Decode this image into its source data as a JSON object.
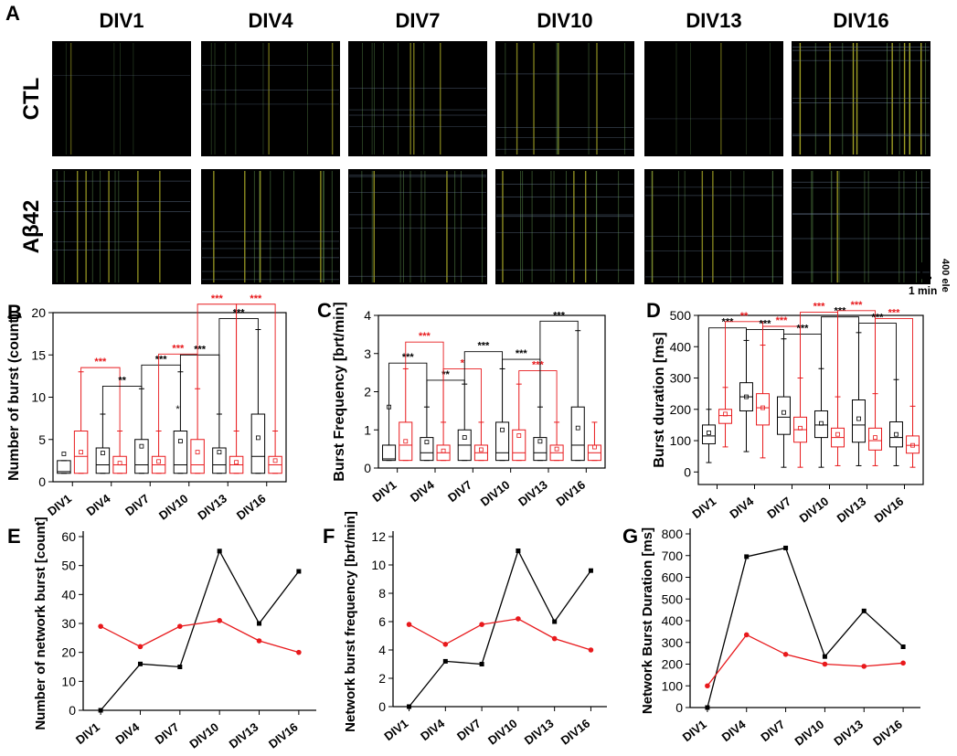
{
  "panel_letters": [
    "A",
    "B",
    "C",
    "D",
    "E",
    "F",
    "G"
  ],
  "raster": {
    "columns": [
      "DIV1",
      "DIV4",
      "DIV7",
      "DIV10",
      "DIV13",
      "DIV16"
    ],
    "rows": [
      "CTL",
      "Aβ42"
    ],
    "scale_vertical": "400 ele",
    "scale_horizontal": "1 min"
  },
  "colors": {
    "ctl": "#000000",
    "abeta": "#e8191c",
    "raster_bg": "#000000"
  },
  "chart_data": [
    {
      "id": "B",
      "type": "box",
      "categories": [
        "DIV1",
        "DIV4",
        "DIV7",
        "DIV10",
        "DIV13",
        "DIV16"
      ],
      "ylabel": "Number of burst (count)",
      "ylim": [
        0,
        20
      ],
      "yticks": [
        0,
        5,
        10,
        15,
        20
      ],
      "series": [
        {
          "name": "CTL",
          "boxes": [
            [
              1,
              1,
              1.2,
              2.5,
              2.5
            ],
            [
              1,
              1,
              2,
              4,
              8
            ],
            [
              1,
              1,
              2,
              5,
              11
            ],
            [
              1,
              1,
              2,
              6,
              13
            ],
            [
              1,
              1,
              2,
              4,
              8
            ],
            [
              1,
              1,
              3,
              8,
              18
            ]
          ],
          "means": [
            3.3,
            3.4,
            4.2,
            4.8,
            3.5,
            5.2
          ]
        },
        {
          "name": "Aβ42",
          "boxes": [
            [
              1,
              1,
              3,
              6,
              13
            ],
            [
              1,
              1,
              2,
              3,
              6
            ],
            [
              1,
              1,
              2,
              3,
              6
            ],
            [
              1,
              1,
              2,
              5,
              11
            ],
            [
              1,
              1,
              2,
              3,
              6
            ],
            [
              1,
              1,
              2,
              3,
              6
            ]
          ],
          "means": [
            3.5,
            2.2,
            2.4,
            3.5,
            2.3,
            2.5
          ]
        }
      ],
      "star_marks": [
        {
          "label": "*",
          "category": "DIV10",
          "value": 8.2,
          "color": "ctl"
        }
      ],
      "brackets": [
        {
          "from": "DIV1",
          "to": "DIV4",
          "series": "Aβ42",
          "label": "***",
          "color": "abeta",
          "level": 13.5
        },
        {
          "from": "DIV4",
          "to": "DIV7",
          "series": "CTL",
          "label": "**",
          "color": "ctl",
          "level": 11.3
        },
        {
          "from": "DIV7",
          "to": "DIV10",
          "series": "CTL",
          "label": "***",
          "color": "ctl",
          "level": 13.8
        },
        {
          "from": "DIV7",
          "to": "DIV10",
          "series": "Aβ42",
          "label": "***",
          "color": "abeta",
          "level": 15.1
        },
        {
          "from": "DIV10",
          "to": "DIV13",
          "series": "CTL",
          "label": "***",
          "color": "ctl",
          "level": 15
        },
        {
          "from": "DIV13",
          "to": "DIV16",
          "series": "CTL",
          "label": "***",
          "color": "ctl",
          "level": 19.3
        },
        {
          "from": "DIV10",
          "to": "DIV13",
          "series": "Aβ42",
          "label": "***",
          "color": "abeta",
          "level": 21
        },
        {
          "from": "DIV13",
          "to": "DIV16",
          "series": "Aβ42",
          "label": "***",
          "color": "abeta",
          "level": 21
        }
      ]
    },
    {
      "id": "C",
      "type": "box",
      "categories": [
        "DIV1",
        "DIV4",
        "DIV7",
        "DIV10",
        "DIV13",
        "DIV16"
      ],
      "ylabel": "Burst Frequency [brt/min]",
      "ylim": [
        0,
        4
      ],
      "yticks": [
        0,
        1,
        2,
        3,
        4
      ],
      "series": [
        {
          "name": "CTL",
          "boxes": [
            [
              0.2,
              0.2,
              0.24,
              0.6,
              0.6
            ],
            [
              0.2,
              0.2,
              0.4,
              0.8,
              1.6
            ],
            [
              0.2,
              0.2,
              0.6,
              1,
              2.2
            ],
            [
              0.2,
              0.2,
              0.4,
              1.2,
              2.6
            ],
            [
              0.2,
              0.2,
              0.4,
              0.8,
              1.6
            ],
            [
              0.2,
              0.2,
              0.6,
              1.6,
              3.6
            ]
          ],
          "means": [
            1.6,
            0.68,
            0.8,
            1.0,
            0.7,
            1.05
          ]
        },
        {
          "name": "Aβ42",
          "boxes": [
            [
              0.2,
              0.2,
              0.6,
              1.2,
              2.6
            ],
            [
              0.2,
              0.2,
              0.4,
              0.6,
              1.2
            ],
            [
              0.2,
              0.2,
              0.4,
              0.6,
              1.2
            ],
            [
              0.2,
              0.2,
              0.4,
              1,
              2.2
            ],
            [
              0.2,
              0.2,
              0.4,
              0.6,
              1.2
            ],
            [
              0.2,
              0.2,
              0.4,
              0.6,
              1.2
            ]
          ],
          "means": [
            0.7,
            0.45,
            0.48,
            0.85,
            0.5,
            0.55
          ]
        }
      ],
      "star_marks": [],
      "brackets": [
        {
          "from": "DIV1",
          "to": "DIV4",
          "series": "CTL",
          "label": "***",
          "color": "ctl",
          "level": 2.75
        },
        {
          "from": "DIV1",
          "to": "DIV4",
          "series": "Aβ42",
          "label": "***",
          "color": "abeta",
          "level": 3.3
        },
        {
          "from": "DIV4",
          "to": "DIV7",
          "series": "CTL",
          "label": "**",
          "color": "ctl",
          "level": 2.3
        },
        {
          "from": "DIV4",
          "to": "DIV7",
          "series": "Aβ42",
          "label": "*",
          "color": "abeta",
          "level": 2.6
        },
        {
          "from": "DIV7",
          "to": "DIV10",
          "series": "CTL",
          "label": "***",
          "color": "ctl",
          "level": 3.05
        },
        {
          "from": "DIV10",
          "to": "DIV13",
          "series": "CTL",
          "label": "***",
          "color": "ctl",
          "level": 2.85
        },
        {
          "from": "DIV10",
          "to": "DIV13",
          "series": "Aβ42",
          "label": "***",
          "color": "abeta",
          "level": 2.55
        },
        {
          "from": "DIV13",
          "to": "DIV16",
          "series": "CTL",
          "label": "***",
          "color": "ctl",
          "level": 3.85
        }
      ]
    },
    {
      "id": "D",
      "type": "box",
      "categories": [
        "DIV1",
        "DIV4",
        "DIV7",
        "DIV10",
        "DIV13",
        "DIV16"
      ],
      "ylabel": "Burst duration [ms]",
      "ylim": [
        -40,
        500
      ],
      "yticks": [
        0,
        100,
        200,
        300,
        400,
        500
      ],
      "series": [
        {
          "name": "CTL",
          "boxes": [
            [
              30,
              90,
              115,
              150,
              200
            ],
            [
              65,
              195,
              240,
              285,
              420
            ],
            [
              15,
              120,
              175,
              240,
              425
            ],
            [
              15,
              110,
              150,
              195,
              330
            ],
            [
              20,
              95,
              150,
              230,
              445
            ],
            [
              20,
              80,
              110,
              160,
              295
            ]
          ],
          "means": [
            125,
            240,
            190,
            155,
            170,
            120
          ]
        },
        {
          "name": "Aβ42",
          "boxes": [
            [
              80,
              155,
              180,
              200,
              270
            ],
            [
              45,
              150,
              205,
              250,
              405
            ],
            [
              15,
              95,
              135,
              175,
              300
            ],
            [
              20,
              80,
              110,
              140,
              240
            ],
            [
              20,
              70,
              100,
              140,
              250
            ],
            [
              15,
              60,
              85,
              115,
              210
            ]
          ],
          "means": [
            185,
            205,
            140,
            120,
            110,
            85
          ]
        }
      ],
      "star_marks": [],
      "brackets": [
        {
          "from": "DIV1",
          "to": "DIV4",
          "series": "CTL",
          "label": "***",
          "color": "ctl",
          "level": 460
        },
        {
          "from": "DIV1",
          "to": "DIV4",
          "series": "Aβ42",
          "label": "**",
          "color": "abeta",
          "level": 480
        },
        {
          "from": "DIV4",
          "to": "DIV7",
          "series": "CTL",
          "label": "***",
          "color": "ctl",
          "level": 455
        },
        {
          "from": "DIV4",
          "to": "DIV7",
          "series": "Aβ42",
          "label": "***",
          "color": "abeta",
          "level": 465
        },
        {
          "from": "DIV7",
          "to": "DIV10",
          "series": "CTL",
          "label": "***",
          "color": "ctl",
          "level": 440
        },
        {
          "from": "DIV7",
          "to": "DIV10",
          "series": "Aβ42",
          "label": "***",
          "color": "abeta",
          "level": 510
        },
        {
          "from": "DIV10",
          "to": "DIV13",
          "series": "CTL",
          "label": "***",
          "color": "ctl",
          "level": 495
        },
        {
          "from": "DIV10",
          "to": "DIV13",
          "series": "Aβ42",
          "label": "***",
          "color": "abeta",
          "level": 515
        },
        {
          "from": "DIV13",
          "to": "DIV16",
          "series": "CTL",
          "label": "***",
          "color": "ctl",
          "level": 475
        },
        {
          "from": "DIV13",
          "to": "DIV16",
          "series": "Aβ42",
          "label": "***",
          "color": "abeta",
          "level": 490
        }
      ]
    },
    {
      "id": "E",
      "type": "line",
      "categories": [
        "DIV1",
        "DIV4",
        "DIV7",
        "DIV10",
        "DIV13",
        "DIV16"
      ],
      "ylabel": "Number of network burst [count]",
      "ylim": [
        0,
        60
      ],
      "yticks": [
        0,
        10,
        20,
        30,
        40,
        50,
        60
      ],
      "series": [
        {
          "name": "CTL",
          "values": [
            0,
            16,
            15,
            55,
            30,
            48
          ]
        },
        {
          "name": "Aβ42",
          "values": [
            29,
            22,
            29,
            31,
            24,
            20
          ]
        }
      ]
    },
    {
      "id": "F",
      "type": "line",
      "categories": [
        "DIV1",
        "DIV4",
        "DIV7",
        "DIV10",
        "DIV13",
        "DIV16"
      ],
      "ylabel": "Network burst frequency [brt/min]",
      "ylim": [
        0,
        12
      ],
      "yticks": [
        0,
        2,
        4,
        6,
        8,
        10,
        12
      ],
      "series": [
        {
          "name": "CTL",
          "values": [
            0,
            3.2,
            3.0,
            11,
            6,
            9.6
          ]
        },
        {
          "name": "Aβ42",
          "values": [
            5.8,
            4.4,
            5.8,
            6.2,
            4.8,
            4.0
          ]
        }
      ]
    },
    {
      "id": "G",
      "type": "line",
      "categories": [
        "DIV1",
        "DIV4",
        "DIV7",
        "DIV10",
        "DIV13",
        "DIV16"
      ],
      "ylabel": "Network Burst Duration [ms]",
      "ylim": [
        0,
        800
      ],
      "yticks": [
        0,
        100,
        200,
        300,
        400,
        500,
        600,
        700,
        800
      ],
      "series": [
        {
          "name": "CTL",
          "values": [
            0,
            695,
            735,
            235,
            445,
            280
          ]
        },
        {
          "name": "Aβ42",
          "values": [
            100,
            335,
            245,
            200,
            190,
            205
          ]
        }
      ]
    }
  ]
}
